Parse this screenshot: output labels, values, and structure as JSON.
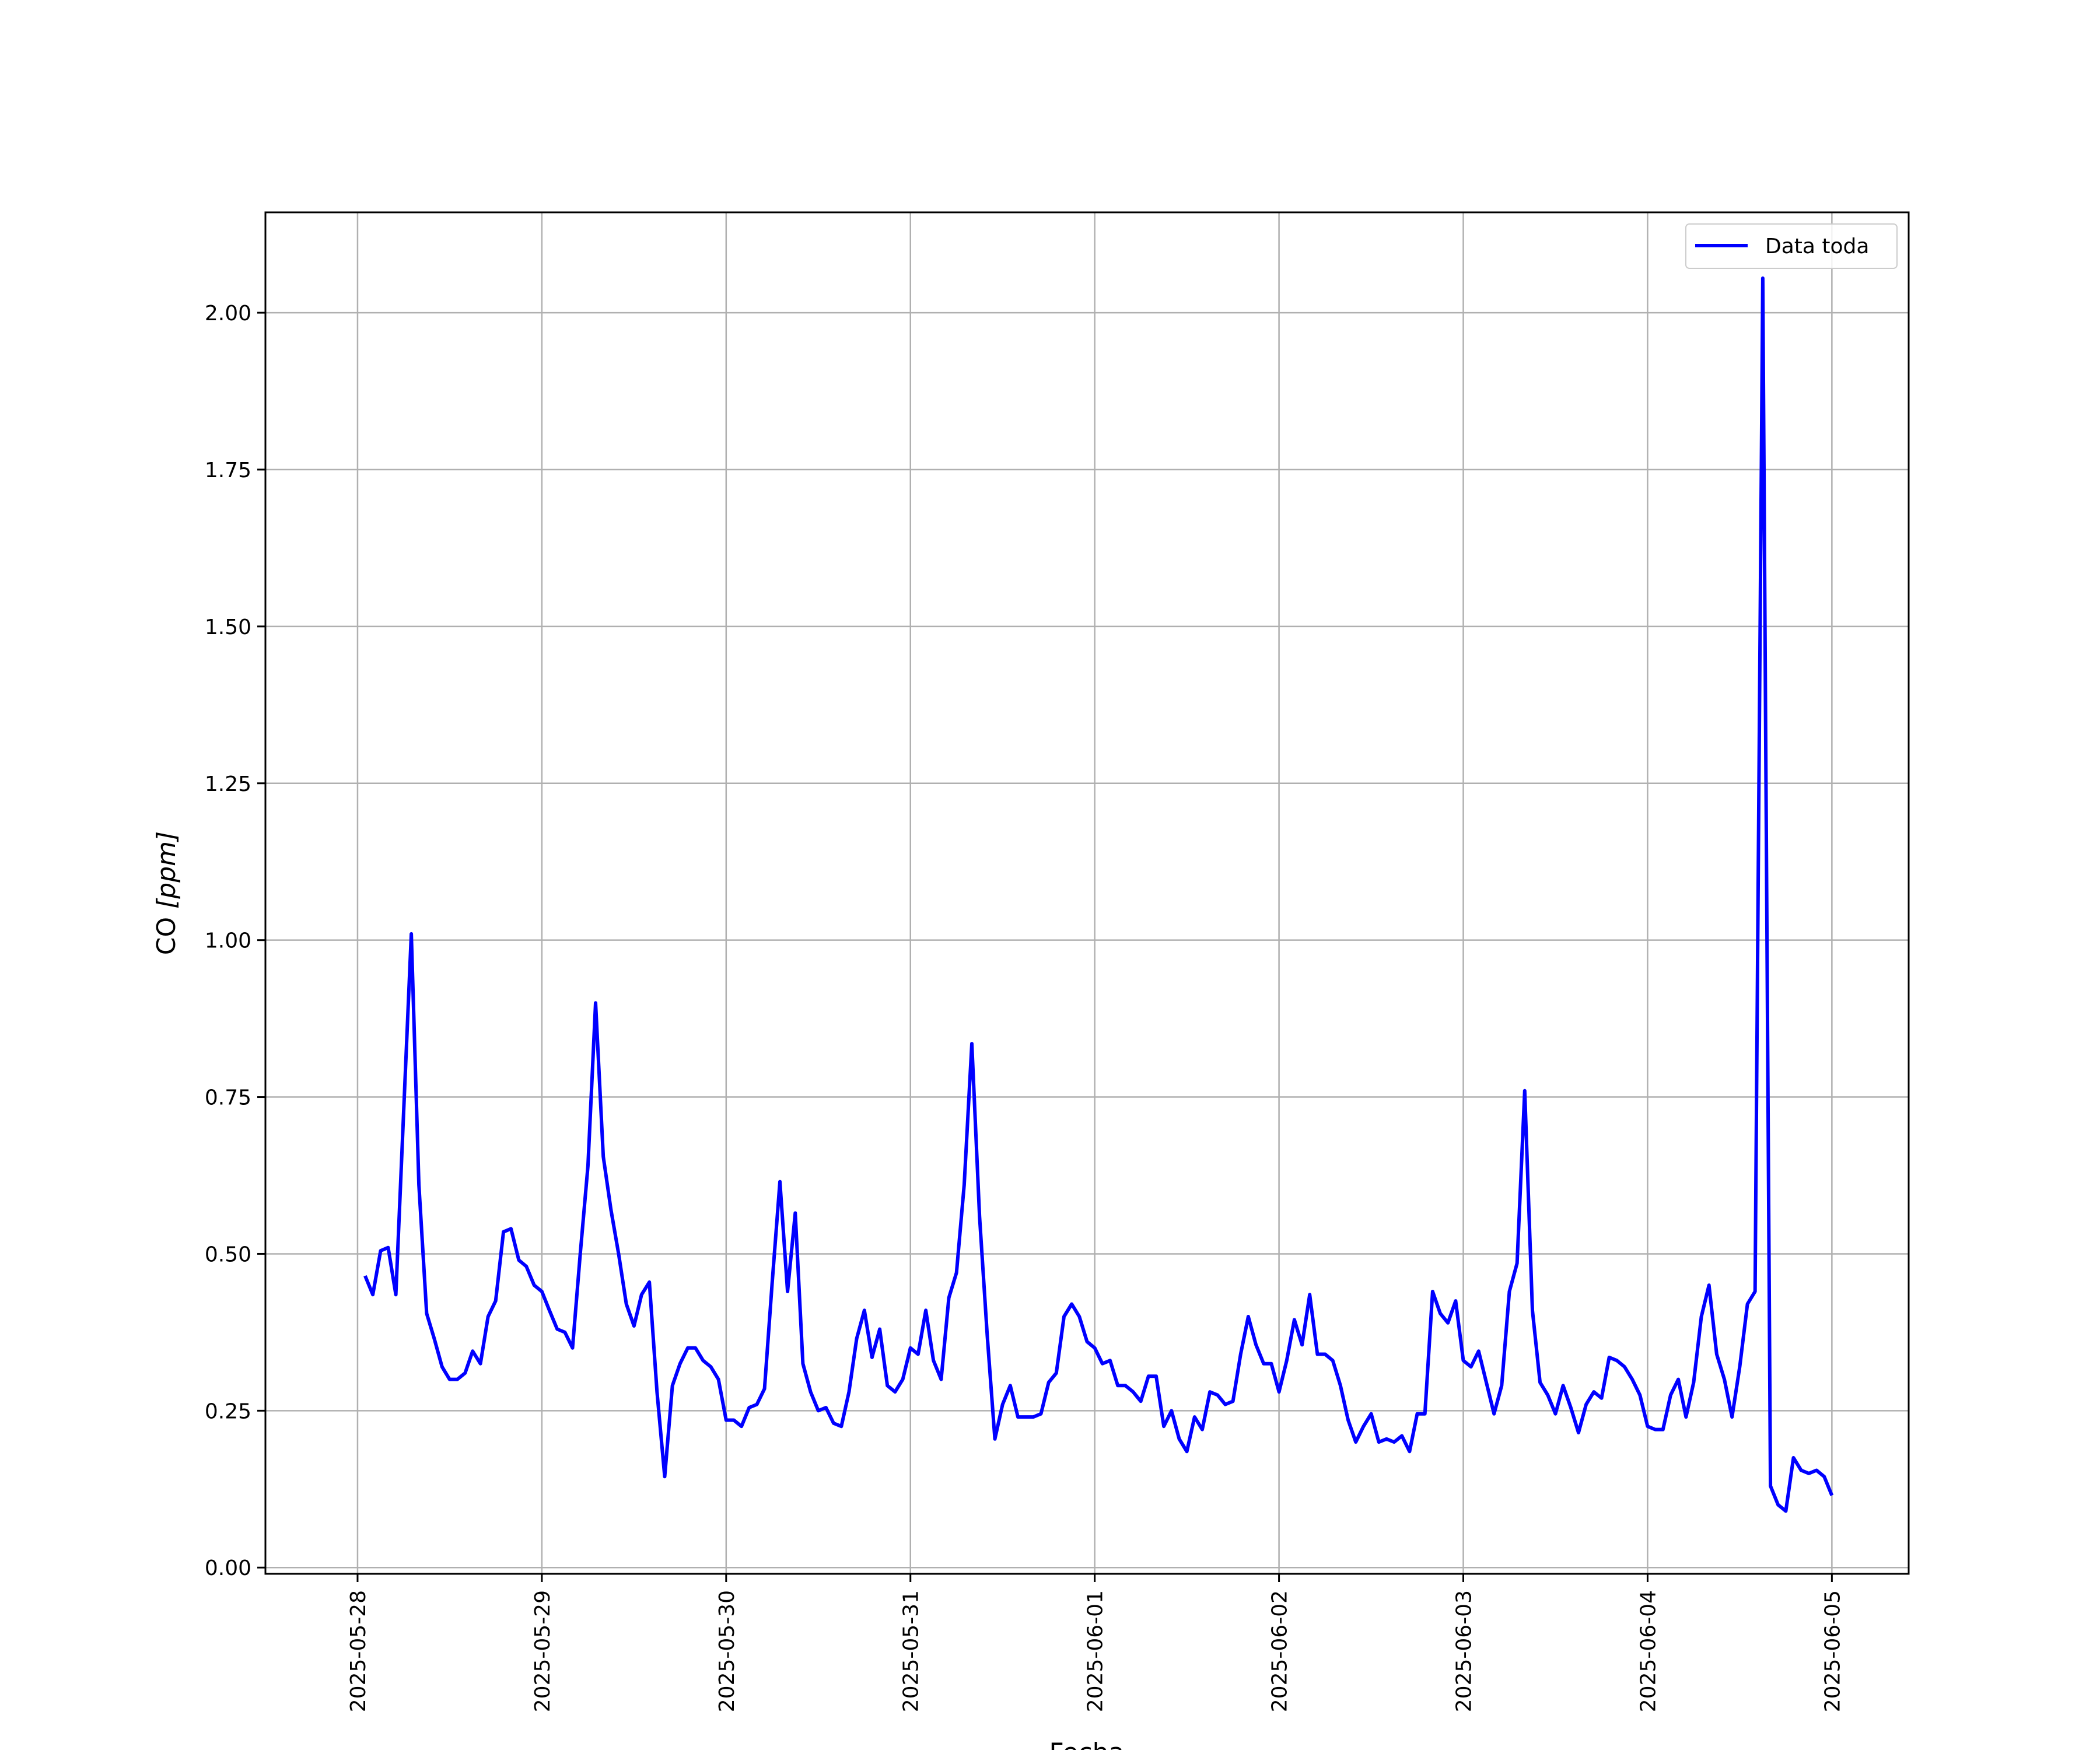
{
  "chart_data": {
    "type": "line",
    "title": "",
    "xlabel": "Fecha",
    "ylabel_main": "CO ",
    "ylabel_unit": "[ppm]",
    "x_type": "date",
    "xlim": [
      "2025-05-27T12:00",
      "2025-06-05T10:00"
    ],
    "ylim": [
      -0.01,
      2.16
    ],
    "x_ticks": [
      "2025-05-28",
      "2025-05-29",
      "2025-05-30",
      "2025-05-31",
      "2025-06-01",
      "2025-06-02",
      "2025-06-03",
      "2025-06-04",
      "2025-06-05"
    ],
    "y_ticks": [
      "0.00",
      "0.25",
      "0.50",
      "0.75",
      "1.00",
      "1.25",
      "1.50",
      "1.75",
      "2.00"
    ],
    "grid": true,
    "legend_position": "top-right",
    "series": [
      {
        "name": "Data toda",
        "color": "#0000ff",
        "x": [
          "2025-05-28T00:59",
          "2025-05-28T01:59",
          "2025-05-28T03:00",
          "2025-05-28T03:59",
          "2025-05-28T04:59",
          "2025-05-28T06:00",
          "2025-05-28T07:00",
          "2025-05-28T07:59",
          "2025-05-28T09:00",
          "2025-05-28T09:59",
          "2025-05-28T11:00",
          "2025-05-28T11:59",
          "2025-05-28T13:00",
          "2025-05-28T14:00",
          "2025-05-28T14:59",
          "2025-05-28T16:00",
          "2025-05-28T17:00",
          "2025-05-28T17:59",
          "2025-05-28T19:00",
          "2025-05-28T19:59",
          "2025-05-28T21:00",
          "2025-05-28T21:59",
          "2025-05-28T23:00",
          "2025-05-29T00:00",
          "2025-05-29T00:59",
          "2025-05-29T02:00",
          "2025-05-29T03:00",
          "2025-05-29T04:00",
          "2025-05-29T05:00",
          "2025-05-29T06:00",
          "2025-05-29T07:00",
          "2025-05-29T08:00",
          "2025-05-29T09:00",
          "2025-05-29T10:00",
          "2025-05-29T11:00",
          "2025-05-29T12:00",
          "2025-05-29T12:59",
          "2025-05-29T14:00",
          "2025-05-29T15:00",
          "2025-05-29T16:00",
          "2025-05-29T17:00",
          "2025-05-29T18:00",
          "2025-05-29T19:00",
          "2025-05-29T20:00",
          "2025-05-29T21:00",
          "2025-05-29T22:00",
          "2025-05-29T23:00",
          "2025-05-30T00:00",
          "2025-05-30T01:00",
          "2025-05-30T02:00",
          "2025-05-30T03:00",
          "2025-05-30T04:00",
          "2025-05-30T05:00",
          "2025-05-30T06:00",
          "2025-05-30T07:00",
          "2025-05-30T08:00",
          "2025-05-30T09:00",
          "2025-05-30T10:00",
          "2025-05-30T11:00",
          "2025-05-30T12:00",
          "2025-05-30T13:00",
          "2025-05-30T14:00",
          "2025-05-30T15:00",
          "2025-05-30T16:00",
          "2025-05-30T17:00",
          "2025-05-30T18:00",
          "2025-05-30T19:00",
          "2025-05-30T20:00",
          "2025-05-30T21:00",
          "2025-05-30T22:00",
          "2025-05-30T23:00",
          "2025-05-31T00:00",
          "2025-05-31T01:00",
          "2025-05-31T02:00",
          "2025-05-31T03:00",
          "2025-05-31T04:00",
          "2025-05-31T05:00",
          "2025-05-31T06:00",
          "2025-05-31T07:00",
          "2025-05-31T08:00",
          "2025-05-31T09:00",
          "2025-05-31T10:00",
          "2025-05-31T11:00",
          "2025-05-31T12:00",
          "2025-05-31T13:00",
          "2025-05-31T14:00",
          "2025-05-31T15:00",
          "2025-05-31T16:00",
          "2025-05-31T17:00",
          "2025-05-31T18:00",
          "2025-05-31T19:00",
          "2025-05-31T20:00",
          "2025-05-31T21:00",
          "2025-05-31T22:00",
          "2025-05-31T23:00",
          "2025-06-01T00:00",
          "2025-06-01T01:00",
          "2025-06-01T02:00",
          "2025-06-01T03:00",
          "2025-06-01T04:00",
          "2025-06-01T05:00",
          "2025-06-01T06:00",
          "2025-06-01T07:00",
          "2025-06-01T08:00",
          "2025-06-01T09:00",
          "2025-06-01T10:00",
          "2025-06-01T11:00",
          "2025-06-01T12:00",
          "2025-06-01T13:00",
          "2025-06-01T14:00",
          "2025-06-01T15:00",
          "2025-06-01T16:00",
          "2025-06-01T17:00",
          "2025-06-01T18:00",
          "2025-06-01T19:00",
          "2025-06-01T20:00",
          "2025-06-01T21:00",
          "2025-06-01T22:00",
          "2025-06-01T23:00",
          "2025-06-02T00:00",
          "2025-06-02T01:00",
          "2025-06-02T02:00",
          "2025-06-02T03:00",
          "2025-06-02T04:00",
          "2025-06-02T05:00",
          "2025-06-02T06:00",
          "2025-06-02T07:00",
          "2025-06-02T08:00",
          "2025-06-02T09:00",
          "2025-06-02T10:00",
          "2025-06-02T11:00",
          "2025-06-02T12:00",
          "2025-06-02T13:00",
          "2025-06-02T14:00",
          "2025-06-02T15:00",
          "2025-06-02T16:00",
          "2025-06-02T17:00",
          "2025-06-02T18:00",
          "2025-06-02T19:00",
          "2025-06-02T20:00",
          "2025-06-02T21:00",
          "2025-06-02T22:00",
          "2025-06-02T23:00",
          "2025-06-03T00:00",
          "2025-06-03T01:00",
          "2025-06-03T02:00",
          "2025-06-03T03:00",
          "2025-06-03T04:00",
          "2025-06-03T05:00",
          "2025-06-03T06:00",
          "2025-06-03T07:00",
          "2025-06-03T08:00",
          "2025-06-03T09:00",
          "2025-06-03T10:00",
          "2025-06-03T11:00",
          "2025-06-03T12:00",
          "2025-06-03T13:00",
          "2025-06-03T14:00",
          "2025-06-03T15:00",
          "2025-06-03T16:00",
          "2025-06-03T17:00",
          "2025-06-03T18:00",
          "2025-06-03T19:00",
          "2025-06-03T20:00",
          "2025-06-03T21:00",
          "2025-06-03T22:00",
          "2025-06-03T23:00",
          "2025-06-04T00:00",
          "2025-06-04T01:00",
          "2025-06-04T02:00",
          "2025-06-04T03:00",
          "2025-06-04T04:00",
          "2025-06-04T05:00",
          "2025-06-04T06:00",
          "2025-06-04T07:00",
          "2025-06-04T08:00",
          "2025-06-04T09:00",
          "2025-06-04T10:00",
          "2025-06-04T11:00",
          "2025-06-04T12:00",
          "2025-06-04T13:00",
          "2025-06-04T14:00",
          "2025-06-04T15:00",
          "2025-06-04T16:00",
          "2025-06-04T17:00",
          "2025-06-04T18:00",
          "2025-06-04T19:00",
          "2025-06-04T20:00",
          "2025-06-04T21:00",
          "2025-06-04T22:00",
          "2025-06-04T23:00",
          "2025-06-05T00:00"
        ],
        "values": [
          0.465,
          0.435,
          0.505,
          0.51,
          0.435,
          0.725,
          1.01,
          0.61,
          0.405,
          0.365,
          0.32,
          0.3,
          0.3,
          0.31,
          0.345,
          0.325,
          0.4,
          0.425,
          0.535,
          0.54,
          0.49,
          0.48,
          0.45,
          0.44,
          0.41,
          0.38,
          0.375,
          0.35,
          0.5,
          0.64,
          0.9,
          0.655,
          0.57,
          0.5,
          0.42,
          0.385,
          0.435,
          0.455,
          0.28,
          0.145,
          0.29,
          0.325,
          0.35,
          0.35,
          0.33,
          0.32,
          0.3,
          0.235,
          0.235,
          0.225,
          0.255,
          0.26,
          0.285,
          0.455,
          0.615,
          0.44,
          0.565,
          0.325,
          0.28,
          0.25,
          0.255,
          0.23,
          0.225,
          0.28,
          0.365,
          0.41,
          0.335,
          0.38,
          0.29,
          0.28,
          0.3,
          0.35,
          0.34,
          0.41,
          0.33,
          0.3,
          0.43,
          0.47,
          0.61,
          0.835,
          0.56,
          0.37,
          0.205,
          0.26,
          0.29,
          0.24,
          0.24,
          0.24,
          0.245,
          0.295,
          0.31,
          0.4,
          0.42,
          0.4,
          0.36,
          0.35,
          0.325,
          0.33,
          0.29,
          0.29,
          0.28,
          0.265,
          0.305,
          0.305,
          0.225,
          0.25,
          0.205,
          0.185,
          0.24,
          0.22,
          0.28,
          0.275,
          0.26,
          0.265,
          0.34,
          0.4,
          0.355,
          0.325,
          0.325,
          0.28,
          0.33,
          0.395,
          0.355,
          0.435,
          0.34,
          0.34,
          0.33,
          0.29,
          0.235,
          0.2,
          0.225,
          0.245,
          0.2,
          0.205,
          0.2,
          0.21,
          0.185,
          0.245,
          0.245,
          0.44,
          0.405,
          0.39,
          0.425,
          0.33,
          0.32,
          0.345,
          0.295,
          0.245,
          0.29,
          0.44,
          0.485,
          0.76,
          0.41,
          0.295,
          0.275,
          0.245,
          0.29,
          0.255,
          0.215,
          0.26,
          0.28,
          0.27,
          0.335,
          0.33,
          0.32,
          0.3,
          0.275,
          0.225,
          0.22,
          0.22,
          0.275,
          0.3,
          0.24,
          0.295,
          0.4,
          0.45,
          0.34,
          0.3,
          0.24,
          0.32,
          0.42,
          0.44,
          2.055,
          0.13,
          0.1,
          0.09,
          0.175,
          0.155,
          0.15,
          0.155,
          0.145,
          0.115
        ]
      }
    ]
  }
}
